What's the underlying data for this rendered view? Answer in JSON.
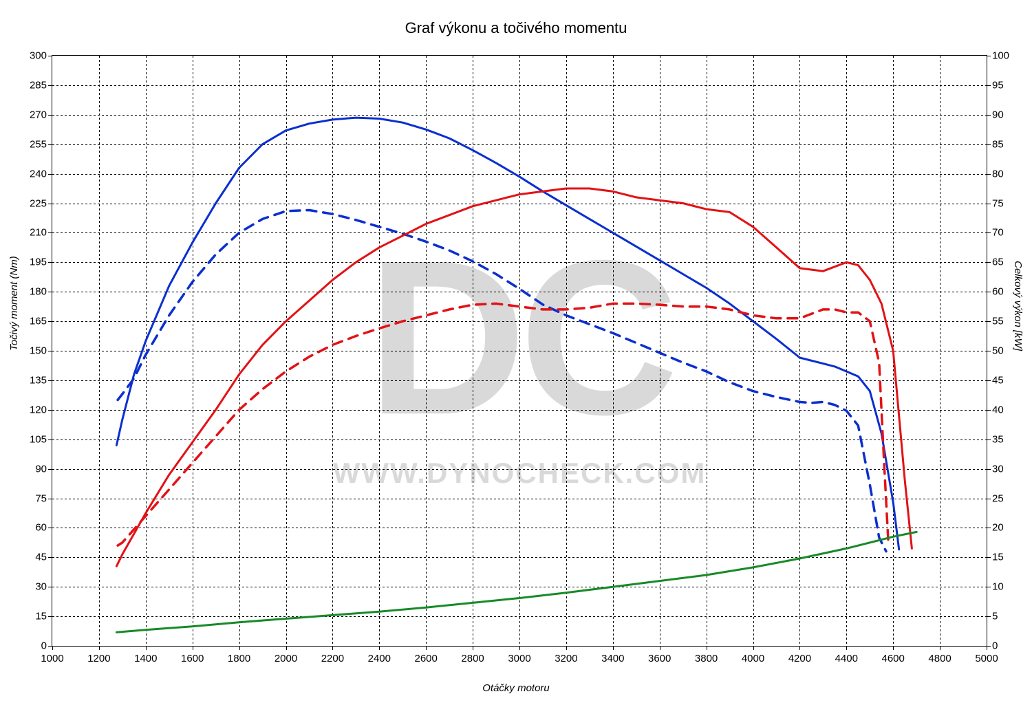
{
  "chart": {
    "type": "line",
    "title": "Graf výkonu a točivého momentu",
    "title_fontsize": 22,
    "background_color": "#ffffff",
    "grid_color": "#000000",
    "grid_dash": "3,3",
    "watermark_big": "DC",
    "watermark_small": "WWW.DYNOCHECK.COM",
    "watermark_color": "#d9d9d9",
    "x_axis": {
      "label": "Otáčky motoru",
      "min": 1000,
      "max": 5000,
      "tick_step": 200,
      "label_fontsize": 15,
      "label_fontstyle": "italic",
      "ticks": [
        1000,
        1200,
        1400,
        1600,
        1800,
        2000,
        2200,
        2400,
        2600,
        2800,
        3000,
        3200,
        3400,
        3600,
        3800,
        4000,
        4200,
        4400,
        4600,
        4800,
        5000
      ]
    },
    "y_axis_left": {
      "label": "Točivý moment (Nm)",
      "min": 0,
      "max": 300,
      "tick_step": 15,
      "label_fontsize": 15,
      "label_fontstyle": "italic",
      "ticks": [
        0,
        15,
        30,
        45,
        60,
        75,
        90,
        105,
        120,
        135,
        150,
        165,
        180,
        195,
        210,
        225,
        240,
        255,
        270,
        285,
        300
      ]
    },
    "y_axis_right": {
      "label": "Celkový výkon [kW]",
      "min": 0,
      "max": 100,
      "tick_step": 5,
      "label_fontsize": 15,
      "label_fontstyle": "italic",
      "ticks": [
        0,
        5,
        10,
        15,
        20,
        25,
        30,
        35,
        40,
        45,
        50,
        55,
        60,
        65,
        70,
        75,
        80,
        85,
        90,
        95,
        100
      ]
    },
    "series": [
      {
        "name": "torque_tuned",
        "axis": "left",
        "color": "#0b2fcf",
        "line_width": 3,
        "dash": "none",
        "points": [
          [
            1275,
            102
          ],
          [
            1300,
            115
          ],
          [
            1350,
            138
          ],
          [
            1400,
            155
          ],
          [
            1500,
            183
          ],
          [
            1600,
            205
          ],
          [
            1700,
            225
          ],
          [
            1800,
            243
          ],
          [
            1900,
            255
          ],
          [
            2000,
            262
          ],
          [
            2100,
            265.5
          ],
          [
            2200,
            267.5
          ],
          [
            2300,
            268.5
          ],
          [
            2400,
            268
          ],
          [
            2500,
            266
          ],
          [
            2600,
            262.5
          ],
          [
            2700,
            258
          ],
          [
            2800,
            252
          ],
          [
            2900,
            245.5
          ],
          [
            3000,
            238.5
          ],
          [
            3100,
            231
          ],
          [
            3200,
            224
          ],
          [
            3300,
            217
          ],
          [
            3400,
            210
          ],
          [
            3500,
            203
          ],
          [
            3600,
            196
          ],
          [
            3700,
            189
          ],
          [
            3800,
            182
          ],
          [
            3900,
            174
          ],
          [
            4000,
            165
          ],
          [
            4100,
            156
          ],
          [
            4200,
            146.5
          ],
          [
            4300,
            143.5
          ],
          [
            4350,
            142
          ],
          [
            4400,
            139.5
          ],
          [
            4450,
            137
          ],
          [
            4500,
            129.5
          ],
          [
            4550,
            108
          ],
          [
            4600,
            73
          ],
          [
            4625,
            49
          ]
        ]
      },
      {
        "name": "torque_stock",
        "axis": "left",
        "color": "#0b2fcf",
        "line_width": 3.5,
        "dash": "14,10",
        "points": [
          [
            1280,
            125
          ],
          [
            1300,
            128
          ],
          [
            1350,
            136
          ],
          [
            1400,
            148
          ],
          [
            1500,
            168
          ],
          [
            1600,
            185
          ],
          [
            1700,
            199
          ],
          [
            1800,
            210
          ],
          [
            1900,
            217
          ],
          [
            2000,
            221
          ],
          [
            2100,
            221.5
          ],
          [
            2200,
            219.5
          ],
          [
            2300,
            216.5
          ],
          [
            2400,
            213
          ],
          [
            2500,
            209.5
          ],
          [
            2600,
            205.5
          ],
          [
            2700,
            201
          ],
          [
            2800,
            195.5
          ],
          [
            2900,
            189
          ],
          [
            3000,
            181.5
          ],
          [
            3100,
            173.5
          ],
          [
            3200,
            168
          ],
          [
            3300,
            163.5
          ],
          [
            3400,
            159
          ],
          [
            3500,
            154
          ],
          [
            3600,
            149
          ],
          [
            3700,
            144
          ],
          [
            3800,
            139.5
          ],
          [
            3900,
            134
          ],
          [
            4000,
            129.5
          ],
          [
            4100,
            126.5
          ],
          [
            4200,
            124
          ],
          [
            4250,
            123.5
          ],
          [
            4300,
            124
          ],
          [
            4350,
            122.5
          ],
          [
            4400,
            119.5
          ],
          [
            4450,
            112
          ],
          [
            4500,
            82
          ],
          [
            4540,
            55
          ],
          [
            4570,
            48
          ]
        ]
      },
      {
        "name": "power_tuned",
        "axis": "right",
        "color": "#e21216",
        "line_width": 3,
        "dash": "none",
        "points": [
          [
            1275,
            13.5
          ],
          [
            1300,
            15.5
          ],
          [
            1400,
            22.5
          ],
          [
            1500,
            29
          ],
          [
            1600,
            34.5
          ],
          [
            1700,
            40
          ],
          [
            1800,
            46
          ],
          [
            1900,
            51
          ],
          [
            2000,
            55
          ],
          [
            2100,
            58.5
          ],
          [
            2200,
            62
          ],
          [
            2300,
            65
          ],
          [
            2400,
            67.5
          ],
          [
            2500,
            69.5
          ],
          [
            2600,
            71.5
          ],
          [
            2700,
            73
          ],
          [
            2800,
            74.5
          ],
          [
            2900,
            75.5
          ],
          [
            3000,
            76.5
          ],
          [
            3100,
            77
          ],
          [
            3200,
            77.5
          ],
          [
            3300,
            77.5
          ],
          [
            3400,
            77
          ],
          [
            3500,
            76
          ],
          [
            3600,
            75.5
          ],
          [
            3700,
            75
          ],
          [
            3800,
            74
          ],
          [
            3900,
            73.5
          ],
          [
            4000,
            71
          ],
          [
            4100,
            67.5
          ],
          [
            4200,
            64
          ],
          [
            4300,
            63.5
          ],
          [
            4400,
            65
          ],
          [
            4450,
            64.5
          ],
          [
            4500,
            62
          ],
          [
            4550,
            58
          ],
          [
            4600,
            50
          ],
          [
            4650,
            28
          ],
          [
            4680,
            16.5
          ]
        ]
      },
      {
        "name": "power_stock",
        "axis": "right",
        "color": "#e21216",
        "line_width": 3.5,
        "dash": "14,10",
        "points": [
          [
            1280,
            17
          ],
          [
            1300,
            17.5
          ],
          [
            1400,
            22
          ],
          [
            1500,
            26.5
          ],
          [
            1600,
            31
          ],
          [
            1700,
            35.5
          ],
          [
            1800,
            40
          ],
          [
            1900,
            43.5
          ],
          [
            2000,
            46.5
          ],
          [
            2100,
            49
          ],
          [
            2200,
            51
          ],
          [
            2300,
            52.5
          ],
          [
            2400,
            53.8
          ],
          [
            2500,
            55
          ],
          [
            2600,
            56
          ],
          [
            2700,
            57
          ],
          [
            2800,
            57.8
          ],
          [
            2900,
            58
          ],
          [
            3000,
            57.5
          ],
          [
            3100,
            57
          ],
          [
            3200,
            57
          ],
          [
            3300,
            57.3
          ],
          [
            3400,
            58
          ],
          [
            3500,
            58
          ],
          [
            3600,
            57.8
          ],
          [
            3700,
            57.5
          ],
          [
            3800,
            57.5
          ],
          [
            3900,
            57
          ],
          [
            4000,
            56
          ],
          [
            4100,
            55.5
          ],
          [
            4200,
            55.5
          ],
          [
            4300,
            57
          ],
          [
            4350,
            57
          ],
          [
            4400,
            56.5
          ],
          [
            4450,
            56.5
          ],
          [
            4500,
            55
          ],
          [
            4540,
            48
          ],
          [
            4560,
            32
          ],
          [
            4580,
            17
          ]
        ]
      },
      {
        "name": "loss_curve",
        "axis": "right",
        "color": "#188a28",
        "line_width": 3,
        "dash": "none",
        "points": [
          [
            1275,
            2.3
          ],
          [
            1400,
            2.7
          ],
          [
            1600,
            3.3
          ],
          [
            1800,
            4
          ],
          [
            2000,
            4.6
          ],
          [
            2200,
            5.2
          ],
          [
            2400,
            5.8
          ],
          [
            2600,
            6.5
          ],
          [
            2800,
            7.3
          ],
          [
            3000,
            8.1
          ],
          [
            3200,
            9
          ],
          [
            3400,
            10
          ],
          [
            3600,
            11
          ],
          [
            3800,
            12
          ],
          [
            4000,
            13.3
          ],
          [
            4200,
            14.8
          ],
          [
            4400,
            16.5
          ],
          [
            4600,
            18.5
          ],
          [
            4700,
            19.3
          ]
        ]
      }
    ]
  }
}
